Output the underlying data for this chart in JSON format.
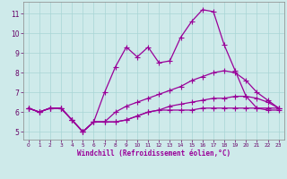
{
  "xlabel": "Windchill (Refroidissement éolien,°C)",
  "line_color": "#990099",
  "bg_color": "#ceeaea",
  "grid_color": "#a8d5d5",
  "x_all": [
    0,
    1,
    2,
    3,
    4,
    5,
    6,
    7,
    8,
    9,
    10,
    11,
    12,
    13,
    14,
    15,
    16,
    17,
    18,
    19,
    20,
    21,
    22,
    23
  ],
  "line_spike": [
    6.2,
    6.0,
    6.2,
    6.2,
    5.6,
    5.0,
    5.5,
    7.0,
    8.3,
    9.3,
    8.8,
    9.3,
    8.5,
    8.6,
    9.8,
    10.6,
    11.2,
    11.1,
    9.4,
    8.1,
    6.8,
    6.2,
    6.1,
    6.1
  ],
  "line_mid": [
    6.2,
    6.0,
    6.2,
    6.2,
    5.6,
    5.0,
    5.5,
    5.5,
    6.0,
    6.3,
    6.5,
    6.7,
    6.9,
    7.1,
    7.3,
    7.6,
    7.8,
    8.0,
    8.1,
    8.0,
    7.6,
    7.0,
    6.6,
    6.2
  ],
  "line_low": [
    6.2,
    6.0,
    6.2,
    6.2,
    5.6,
    5.0,
    5.5,
    5.5,
    5.5,
    5.6,
    5.8,
    6.0,
    6.1,
    6.3,
    6.4,
    6.5,
    6.6,
    6.7,
    6.7,
    6.8,
    6.8,
    6.7,
    6.5,
    6.2
  ],
  "line_flat": [
    6.2,
    6.0,
    6.2,
    6.2,
    5.6,
    5.0,
    5.5,
    5.5,
    5.5,
    5.6,
    5.8,
    6.0,
    6.1,
    6.1,
    6.1,
    6.1,
    6.2,
    6.2,
    6.2,
    6.2,
    6.2,
    6.2,
    6.2,
    6.2
  ],
  "ylim": [
    4.6,
    11.6
  ],
  "yticks": [
    5,
    6,
    7,
    8,
    9,
    10,
    11
  ],
  "xlim": [
    -0.5,
    23.5
  ],
  "xticks": [
    0,
    1,
    2,
    3,
    4,
    5,
    6,
    7,
    8,
    9,
    10,
    11,
    12,
    13,
    14,
    15,
    16,
    17,
    18,
    19,
    20,
    21,
    22,
    23
  ],
  "markersize": 2.0,
  "linewidth": 0.9
}
